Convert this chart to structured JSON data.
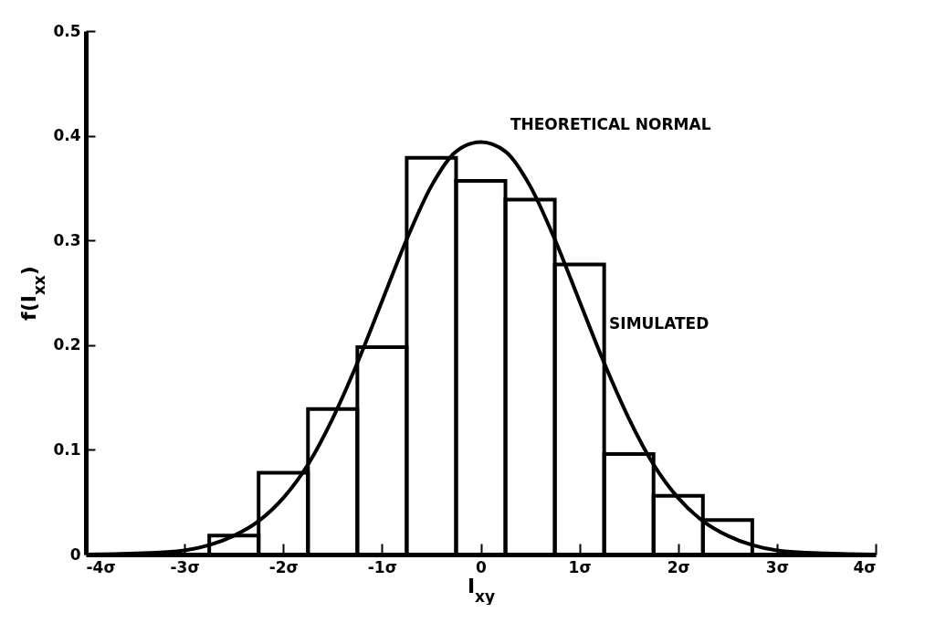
{
  "chart_data": {
    "type": "histogram",
    "xlabel": "I$_{xy}$",
    "ylabel": "f(I$_{xx}$)",
    "xlim": [
      -4,
      4
    ],
    "ylim": [
      0,
      0.5
    ],
    "xticks": [
      {
        "value": -4,
        "label": "-4σ"
      },
      {
        "value": -3,
        "label": "-3σ"
      },
      {
        "value": -2,
        "label": "-2σ"
      },
      {
        "value": -1,
        "label": "-1σ"
      },
      0,
      {
        "value": 1,
        "label": "1σ"
      },
      {
        "value": 2,
        "label": "2σ"
      },
      {
        "value": 3,
        "label": "3σ"
      },
      {
        "value": 4,
        "label": "4σ"
      }
    ],
    "yticks": [
      0,
      0.1,
      0.2,
      0.3,
      0.4,
      0.5
    ],
    "series": [
      {
        "type": "histogram",
        "name": "SIMULATED",
        "color": "#000000",
        "bins": [
          -2.75,
          -2.25,
          -1.75,
          -1.25,
          -0.75,
          -0.25,
          0.25,
          0.75,
          1.25,
          1.75,
          2.25,
          2.75
        ],
        "values": [
          0.018,
          0.078,
          0.139,
          0.198,
          0.379,
          0.357,
          0.339,
          0.277,
          0.096,
          0.056,
          0.033
        ]
      },
      {
        "type": "line",
        "name": "THEORETICAL NORMAL",
        "color": "#000000",
        "x": [
          -4,
          -3.5,
          -3,
          -2.75,
          -2.5,
          -2.25,
          -2,
          -1.75,
          -1.5,
          -1.25,
          -1,
          -0.75,
          -0.5,
          -0.25,
          0,
          0.25,
          0.5,
          0.75,
          1,
          1.25,
          1.5,
          1.75,
          2,
          2.25,
          2.5,
          2.75,
          3,
          3.5,
          4
        ],
        "values": [
          0,
          0.001,
          0.004,
          0.009,
          0.018,
          0.032,
          0.054,
          0.086,
          0.13,
          0.183,
          0.242,
          0.301,
          0.352,
          0.385,
          0.394,
          0.385,
          0.352,
          0.301,
          0.242,
          0.183,
          0.13,
          0.086,
          0.054,
          0.032,
          0.018,
          0.009,
          0.004,
          0.001,
          0
        ]
      }
    ],
    "grid": false,
    "legend": false
  }
}
